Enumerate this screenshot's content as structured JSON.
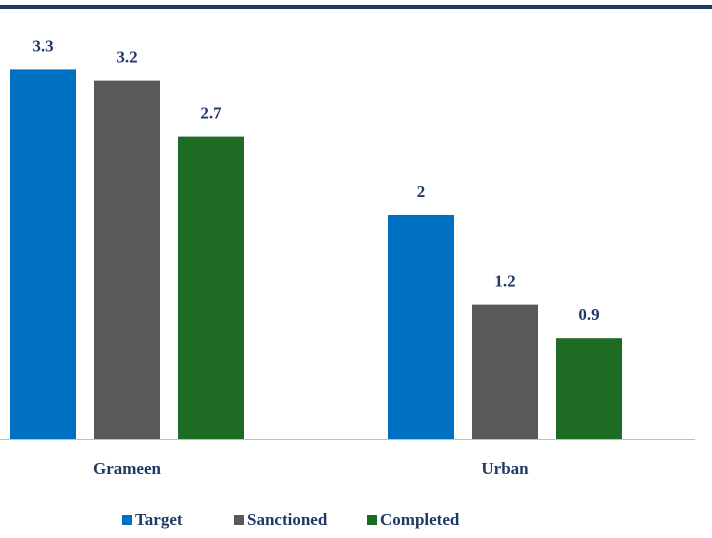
{
  "chart_data": {
    "type": "bar",
    "categories": [
      "Grameen",
      "Urban"
    ],
    "series": [
      {
        "name": "Target",
        "color": "#0070c0",
        "values": [
          3.3,
          2
        ]
      },
      {
        "name": "Sanctioned",
        "color": "#595959",
        "values": [
          3.2,
          1.2
        ]
      },
      {
        "name": "Completed",
        "color": "#1e6b23",
        "values": [
          2.7,
          0.9
        ]
      }
    ],
    "legend": "bottom"
  }
}
